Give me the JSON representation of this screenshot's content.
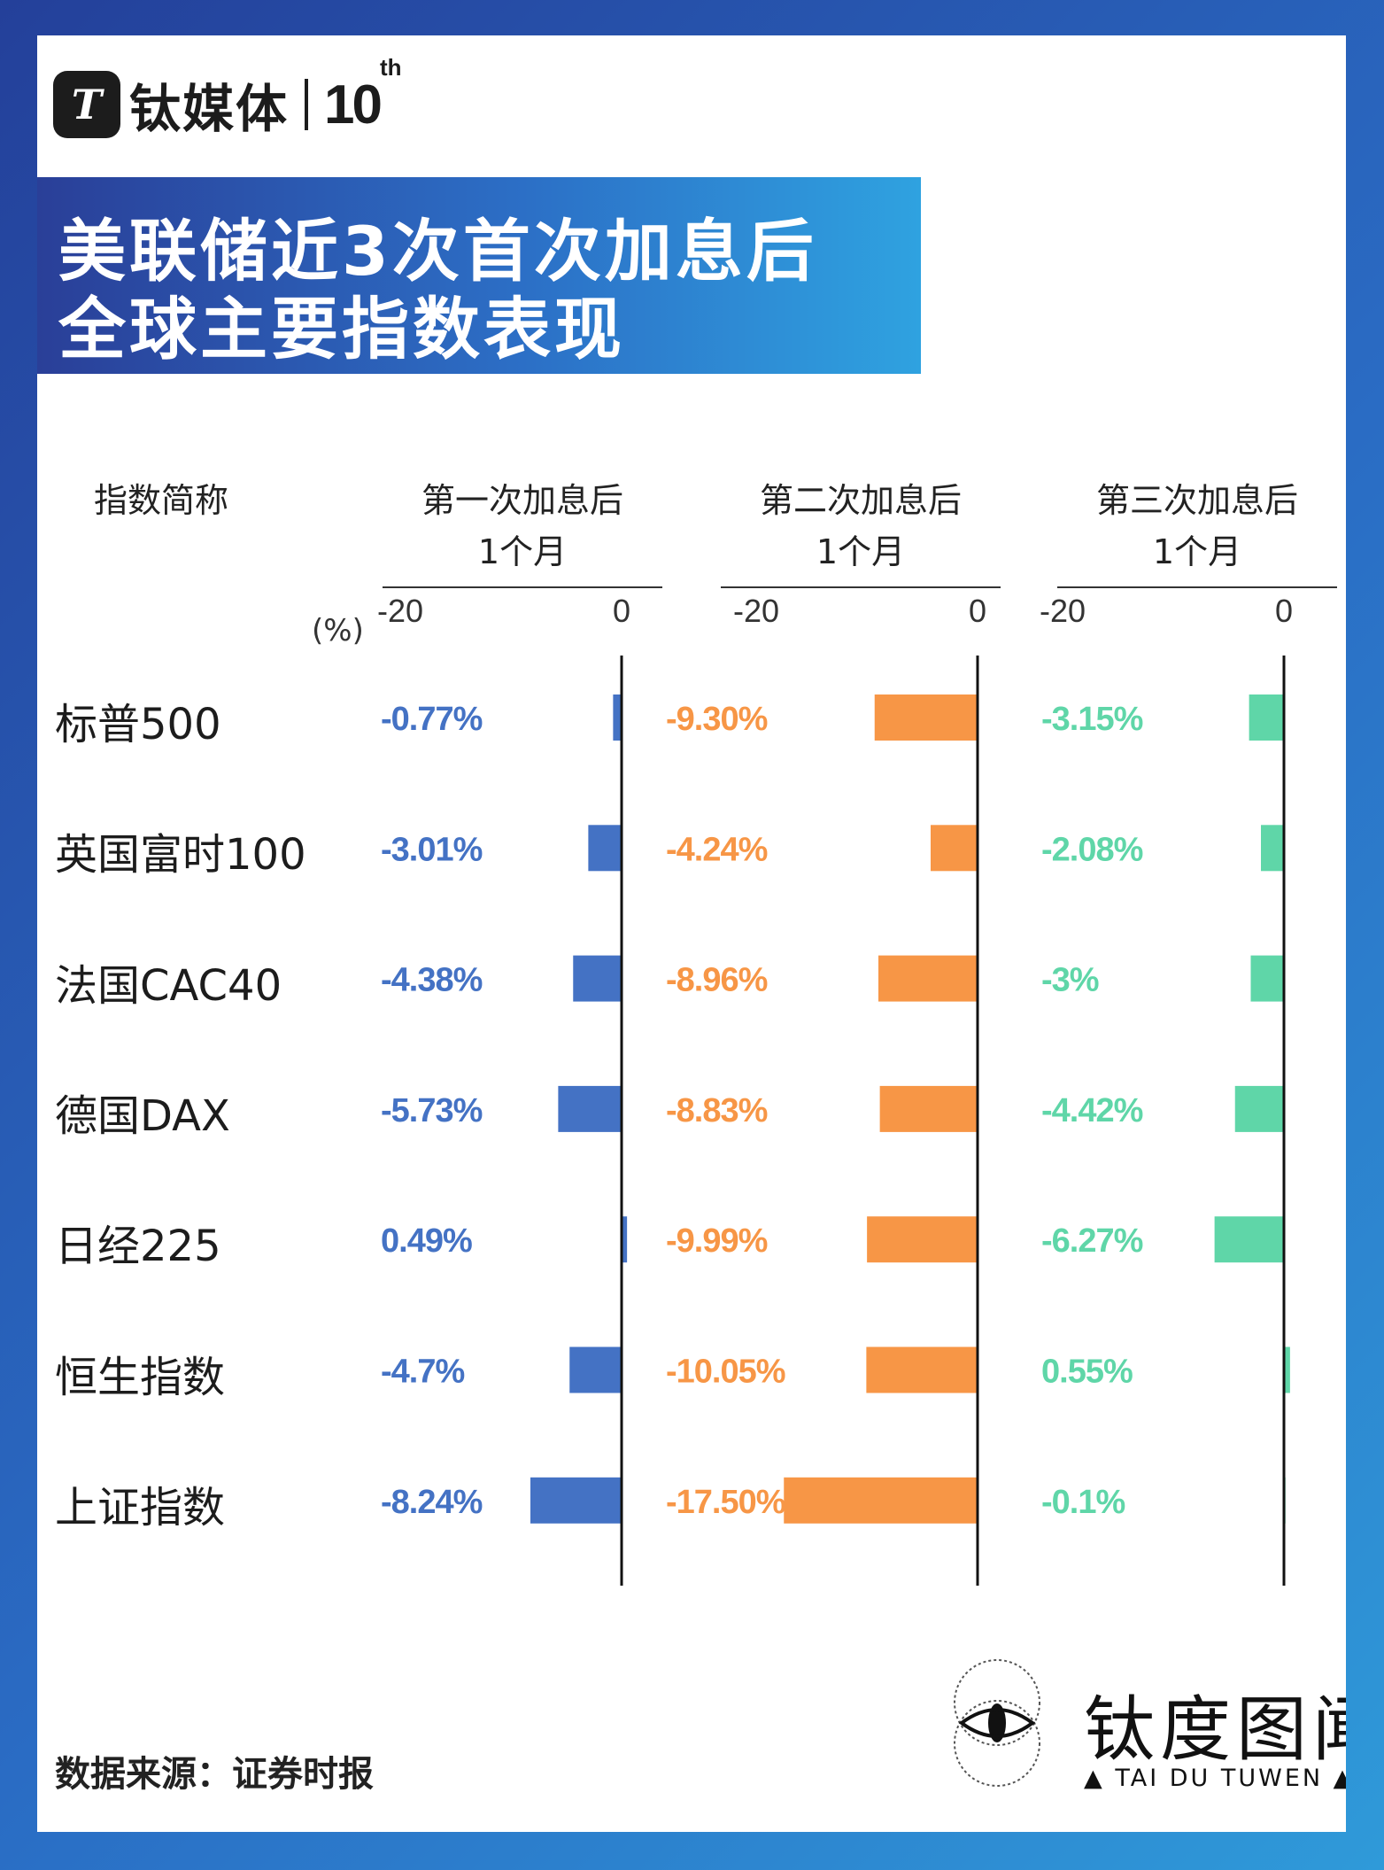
{
  "brand": {
    "logo_mark": "T",
    "name": "钛媒体",
    "ten": "10",
    "ten_sup": "th"
  },
  "title": {
    "line1": "美联储近3次首次加息后",
    "line2": "全球主要指数表现"
  },
  "headers": {
    "name_col": "指数简称",
    "groups": [
      {
        "line1": "第一次加息后",
        "line2": "1个月"
      },
      {
        "line1": "第二次加息后",
        "line2": "1个月"
      },
      {
        "line1": "第三次加息后",
        "line2": "1个月"
      }
    ]
  },
  "unit": "(%)",
  "source": "数据来源：证券时报",
  "footer_brand": {
    "cn": "钛度图闻",
    "en": "▲ TAI DU TUWEN ▲",
    "icon": "eye-icon"
  },
  "chart_data": {
    "type": "bar",
    "orientation": "horizontal",
    "categories": [
      "标普500",
      "英国富时100",
      "法国CAC40",
      "德国DAX",
      "日经225",
      "恒生指数",
      "上证指数"
    ],
    "axis_ticks": [
      "-20",
      "0"
    ],
    "xlim": [
      -20,
      0
    ],
    "series": [
      {
        "color": "#4472c4",
        "values": [
          -0.77,
          -3.01,
          -4.38,
          -5.73,
          0.49,
          -4.7,
          -8.24
        ],
        "labels": [
          "-0.77%",
          "-3.01%",
          "-4.38%",
          "-5.73%",
          "0.49%",
          "-4.7%",
          "-8.24%"
        ]
      },
      {
        "color": "#f79646",
        "values": [
          -9.3,
          -4.24,
          -8.96,
          -8.83,
          -9.99,
          -10.05,
          -17.5
        ],
        "labels": [
          "-9.30%",
          "-4.24%",
          "-8.96%",
          "-8.83%",
          "-9.99%",
          "-10.05%",
          "-17.50%"
        ]
      },
      {
        "color": "#5fd6a8",
        "values": [
          -3.15,
          -2.08,
          -3,
          -4.42,
          -6.27,
          0.55,
          -0.1
        ],
        "labels": [
          "-3.15%",
          "-2.08%",
          "-3%",
          "-4.42%",
          "-6.27%",
          "0.55%",
          "-0.1%"
        ]
      }
    ]
  }
}
